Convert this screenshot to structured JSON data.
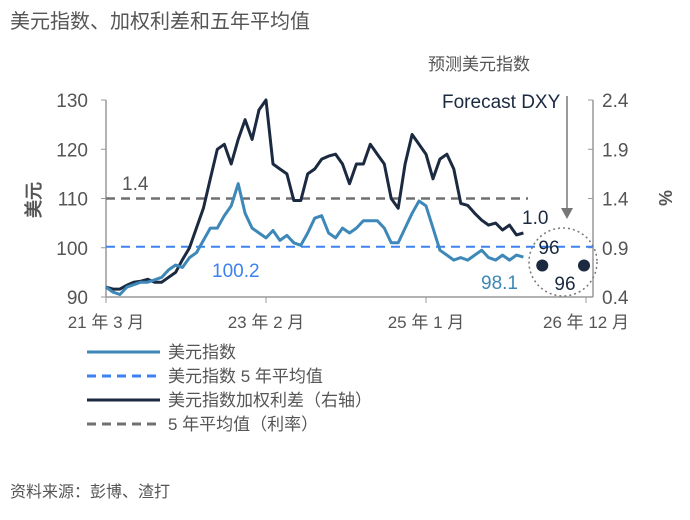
{
  "chart_data": {
    "type": "line",
    "title": "美元指数、加权利差和五年平均值",
    "forecast_heading": "预测美元指数",
    "forecast_label": "Forecast DXY",
    "ylabel_left": "美元",
    "ylabel_right": "%",
    "ylim_left": [
      90,
      130
    ],
    "ylim_right": [
      0.4,
      2.4
    ],
    "left_ticks": [
      "90",
      "100",
      "110",
      "120",
      "130"
    ],
    "right_ticks": [
      "0.4",
      "0.9",
      "1.4",
      "1.9",
      "2.4"
    ],
    "x_ticks": [
      {
        "label": "21 年 3 月",
        "month": 0
      },
      {
        "label": "23 年 2 月",
        "month": 23
      },
      {
        "label": "25 年 1 月",
        "month": 46
      },
      {
        "label": "26 年 12 月",
        "month": 69
      }
    ],
    "x_range_months": [
      0,
      69
    ],
    "series": [
      {
        "name": "美元指数",
        "axis": "left",
        "color": "#3d88b8",
        "values": [
          92,
          91,
          90.5,
          92,
          92.5,
          93,
          93,
          93.5,
          94,
          95.5,
          96.5,
          96,
          98,
          99,
          101.5,
          104,
          104,
          106.5,
          108.5,
          113,
          107,
          104,
          103,
          102,
          103.5,
          101.5,
          102.5,
          101,
          100.5,
          103,
          106,
          106.5,
          103,
          102,
          104,
          103,
          104,
          105.5,
          105.5,
          105.5,
          104,
          101,
          101,
          104,
          107,
          109.5,
          108.5,
          104,
          99.5,
          98.5,
          97.5,
          98,
          97.5,
          98.5,
          99.5,
          98,
          97.5,
          98.5,
          97.5,
          98.5,
          98.1
        ]
      },
      {
        "name": "美元指数 5 年平均值",
        "axis": "left",
        "color": "#3b82f0",
        "style": "dashed",
        "value": 100.2
      },
      {
        "name": "美元指数加权利差（右轴）",
        "axis": "right",
        "color": "#1b2a40",
        "values": [
          0.5,
          0.48,
          0.48,
          0.52,
          0.55,
          0.56,
          0.58,
          0.55,
          0.55,
          0.6,
          0.65,
          0.78,
          0.9,
          1.1,
          1.3,
          1.6,
          1.9,
          1.95,
          1.75,
          2.0,
          2.2,
          2.0,
          2.3,
          2.4,
          1.75,
          1.7,
          1.65,
          1.38,
          1.38,
          1.65,
          1.7,
          1.8,
          1.83,
          1.85,
          1.75,
          1.55,
          1.75,
          1.75,
          1.95,
          1.85,
          1.75,
          1.4,
          1.3,
          1.75,
          2.05,
          1.95,
          1.85,
          1.6,
          1.8,
          1.85,
          1.7,
          1.35,
          1.33,
          1.25,
          1.18,
          1.13,
          1.15,
          1.08,
          1.13,
          1.03,
          1.05
        ]
      },
      {
        "name": "5 年平均值（利率）",
        "axis": "right",
        "color": "#707070",
        "style": "dashed",
        "value": 1.4
      }
    ],
    "annotations": {
      "avg_dxy": "100.2",
      "last_dxy": "98.1",
      "avg_rate": "1.4",
      "last_rate": "1.0"
    },
    "forecast_points": [
      {
        "month": 63,
        "value": 96,
        "label": "96"
      },
      {
        "month": 69,
        "value": 96,
        "label": "96"
      }
    ],
    "legend_placement": "bottom-left"
  },
  "source": "资料来源：彭博、渣打"
}
